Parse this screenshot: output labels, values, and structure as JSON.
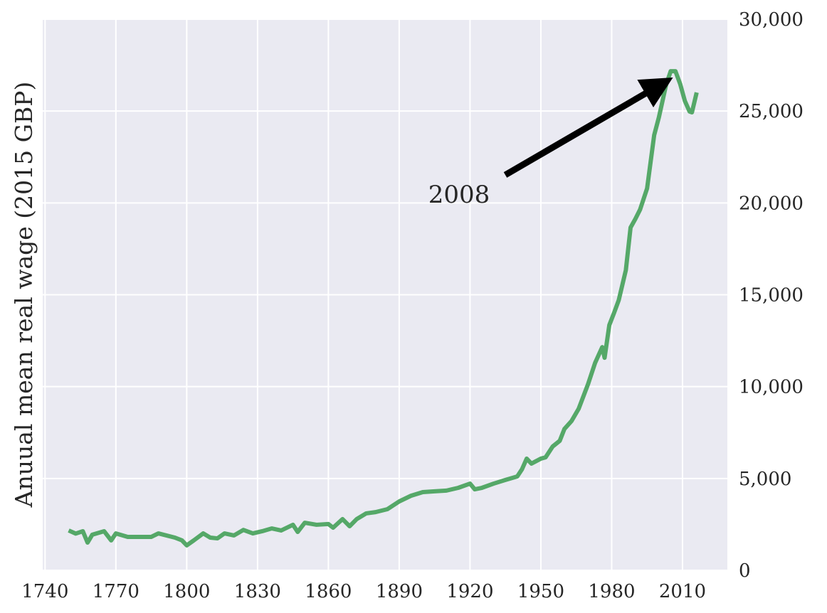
{
  "chart_data": {
    "type": "line",
    "ylabel": "Anuual mean real wage (2015 GBP)",
    "annotation": "2008",
    "x": [
      1750,
      1753,
      1756,
      1758,
      1760,
      1765,
      1768,
      1770,
      1775,
      1780,
      1785,
      1788,
      1795,
      1798,
      1800,
      1803,
      1807,
      1810,
      1813,
      1816,
      1820,
      1824,
      1828,
      1832,
      1836,
      1840,
      1845,
      1847,
      1850,
      1855,
      1860,
      1862,
      1866,
      1869,
      1872,
      1876,
      1880,
      1885,
      1890,
      1895,
      1900,
      1905,
      1910,
      1915,
      1920,
      1922,
      1925,
      1930,
      1935,
      1940,
      1942,
      1944,
      1946,
      1950,
      1952,
      1955,
      1958,
      1960,
      1963,
      1966,
      1970,
      1973,
      1976,
      1977,
      1979,
      1981,
      1983,
      1986,
      1988,
      1990,
      1992,
      1995,
      1998,
      2000,
      2003,
      2005,
      2007,
      2009,
      2011,
      2013,
      2014,
      2016
    ],
    "series": [
      {
        "name": "wage",
        "color": "#55a868",
        "values": [
          2170,
          2000,
          2130,
          1510,
          1940,
          2130,
          1630,
          2010,
          1820,
          1820,
          1820,
          2010,
          1780,
          1630,
          1360,
          1630,
          2010,
          1780,
          1740,
          2010,
          1900,
          2200,
          2010,
          2130,
          2280,
          2170,
          2480,
          2090,
          2590,
          2480,
          2520,
          2320,
          2790,
          2400,
          2790,
          3100,
          3170,
          3330,
          3750,
          4060,
          4260,
          4300,
          4340,
          4490,
          4720,
          4410,
          4490,
          4720,
          4920,
          5110,
          5500,
          6080,
          5810,
          6080,
          6150,
          6740,
          7050,
          7700,
          8130,
          8790,
          10140,
          11300,
          12150,
          11570,
          13350,
          14010,
          14710,
          16340,
          18660,
          19120,
          19630,
          20790,
          23690,
          24660,
          26400,
          27170,
          27170,
          26480,
          25550,
          24970,
          24930,
          26010
        ]
      }
    ],
    "xlim": [
      1739,
      2029
    ],
    "xticks": [
      1740,
      1770,
      1800,
      1830,
      1860,
      1890,
      1920,
      1950,
      1980,
      2010
    ],
    "ylim": [
      0,
      30000
    ],
    "yticks": [
      0,
      {
        "value": 5000,
        "label": "5,000"
      },
      {
        "value": 10000,
        "label": "10,000"
      },
      {
        "value": 15000,
        "label": "15,000"
      },
      {
        "value": 20000,
        "label": "20,000"
      },
      {
        "value": 25000,
        "label": "25,000"
      },
      {
        "value": 30000,
        "label": "30,000"
      }
    ],
    "grid": true
  }
}
